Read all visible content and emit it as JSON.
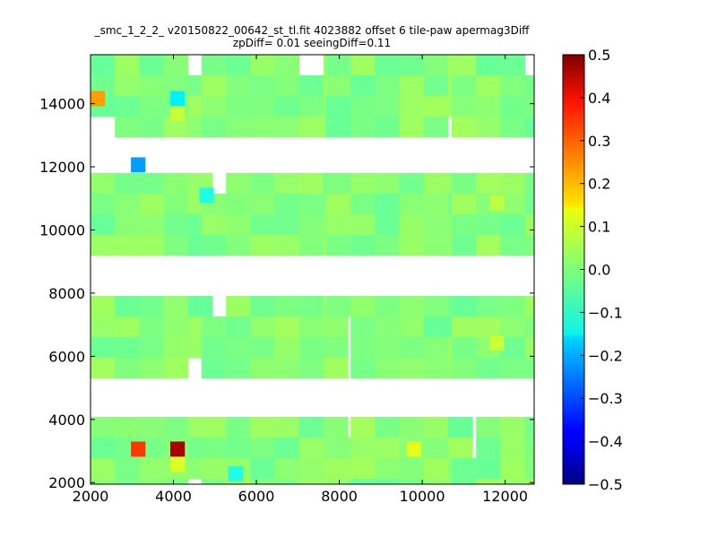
{
  "chart_data": {
    "type": "heatmap",
    "title_lines": [
      "_smc_1_2_2_ v20150822_00642_st_tl.fit 4023882 offset 6 tile-paw apermag3Diff",
      "zpDiff= 0.01 seeingDiff=0.11"
    ],
    "xlabel": "",
    "ylabel": "",
    "xlim": [
      2000,
      12700
    ],
    "ylim": [
      1950,
      15550
    ],
    "x_ticks": [
      2000,
      4000,
      6000,
      8000,
      10000,
      12000
    ],
    "y_ticks": [
      2000,
      4000,
      6000,
      8000,
      10000,
      12000,
      14000
    ],
    "colormap": "jet",
    "color_range": [
      -0.5,
      0.5
    ],
    "colorbar_ticks": [
      0.5,
      0.4,
      0.3,
      0.2,
      0.1,
      0.0,
      -0.1,
      -0.2,
      -0.3,
      -0.4,
      -0.5
    ],
    "colorbar_tick_labels": [
      "0.5",
      "0.4",
      "0.3",
      "0.2",
      "0.1",
      "0.0",
      "−0.1",
      "−0.2",
      "−0.3",
      "−0.4",
      "−0.5"
    ],
    "grid": false,
    "cell_size": [
      350,
      480
    ],
    "cell_values_description": "most cells near 0.0 (green); a few outliers listed in outliers",
    "outliers": [
      {
        "x": 2175,
        "y": 14160,
        "value": 0.22
      },
      {
        "x": 4100,
        "y": 14160,
        "value": -0.14
      },
      {
        "x": 4100,
        "y": 13680,
        "value": 0.07
      },
      {
        "x": 3150,
        "y": 12060,
        "value": -0.22
      },
      {
        "x": 4800,
        "y": 11100,
        "value": -0.1
      },
      {
        "x": 3150,
        "y": 3060,
        "value": 0.32
      },
      {
        "x": 4100,
        "y": 3060,
        "value": 0.46
      },
      {
        "x": 4100,
        "y": 2580,
        "value": 0.09
      },
      {
        "x": 5500,
        "y": 2280,
        "value": -0.1
      },
      {
        "x": 9800,
        "y": 3060,
        "value": 0.1
      },
      {
        "x": 11800,
        "y": 6420,
        "value": 0.07
      },
      {
        "x": 11800,
        "y": 10860,
        "value": 0.06
      }
    ]
  }
}
